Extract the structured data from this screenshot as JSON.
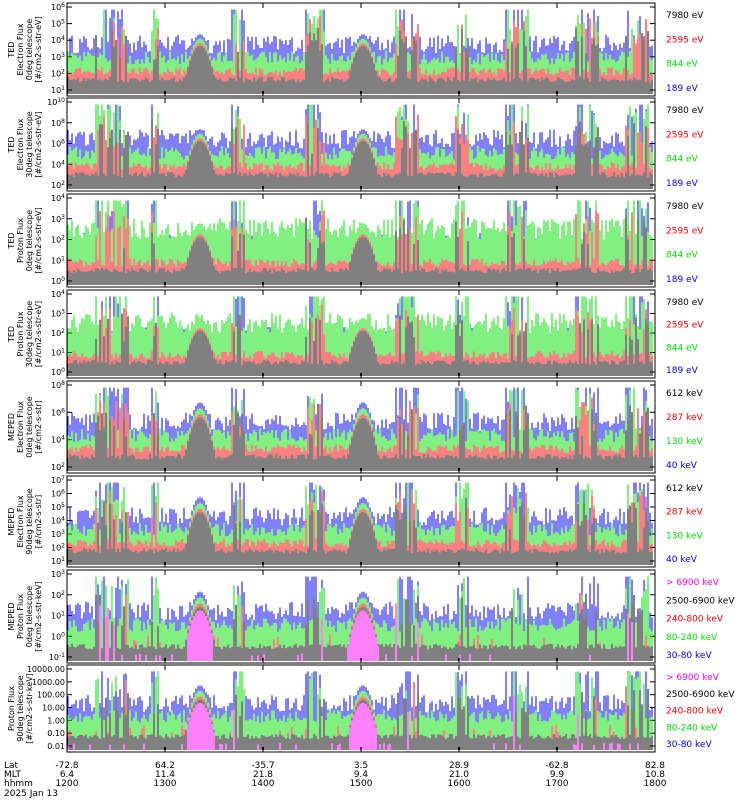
{
  "colors": {
    "blue": "#0000ff",
    "red": "#ff0000",
    "green": "#00e000",
    "black": "#000000",
    "magenta": "#ff00ff"
  },
  "chart_data": [
    {
      "type": "line",
      "ylabel": [
        "TED",
        "Electron Flux",
        "0deg telescope",
        "[#/cm2-s-str-eV]"
      ],
      "yscale": "log",
      "yticks": [
        "10^1",
        "10^2",
        "10^3",
        "10^4",
        "10^5",
        "10^6"
      ],
      "ylim": [
        10,
        1000000
      ],
      "series": [
        {
          "name": "7980 eV",
          "color": "#000000"
        },
        {
          "name": "2595 eV",
          "color": "#ff0000"
        },
        {
          "name": "844 eV",
          "color": "#00e000"
        },
        {
          "name": "189 eV",
          "color": "#0000ff"
        }
      ]
    },
    {
      "type": "line",
      "ylabel": [
        "TED",
        "Electron Flux",
        "30deg telescope",
        "[#/cm2-s-str-eV]"
      ],
      "yscale": "log",
      "yticks": [
        "10^2",
        "10^4",
        "10^6",
        "10^8",
        "10^10"
      ],
      "ylim": [
        100,
        10000000000
      ],
      "series": [
        {
          "name": "7980 eV",
          "color": "#000000"
        },
        {
          "name": "2595 eV",
          "color": "#ff0000"
        },
        {
          "name": "844 eV",
          "color": "#00e000"
        },
        {
          "name": "189 eV",
          "color": "#0000ff"
        }
      ]
    },
    {
      "type": "line",
      "ylabel": [
        "TED",
        "Proton Flux",
        "0deg telescope",
        "[#/cm2-s-str-eV]"
      ],
      "yscale": "log",
      "yticks": [
        "10^0",
        "10^1",
        "10^2",
        "10^3",
        "10^4"
      ],
      "ylim": [
        1,
        100000
      ],
      "series": [
        {
          "name": "7980 eV",
          "color": "#000000"
        },
        {
          "name": "2595 eV",
          "color": "#ff0000"
        },
        {
          "name": "844 eV",
          "color": "#00e000"
        },
        {
          "name": "189 eV",
          "color": "#0000ff"
        }
      ]
    },
    {
      "type": "line",
      "ylabel": [
        "TED",
        "Proton Flux",
        "30deg telescope",
        "[#/cm2-s-str-eV]"
      ],
      "yscale": "log",
      "yticks": [
        "10^0",
        "10^1",
        "10^2",
        "10^3",
        "10^4"
      ],
      "ylim": [
        1,
        100000
      ],
      "series": [
        {
          "name": "7980 eV",
          "color": "#000000"
        },
        {
          "name": "2595 eV",
          "color": "#ff0000"
        },
        {
          "name": "844 eV",
          "color": "#00e000"
        },
        {
          "name": "189 eV",
          "color": "#0000ff"
        }
      ]
    },
    {
      "type": "line",
      "ylabel": [
        "MEPED",
        "Electron Flux",
        "0deg telescope",
        "[#/cm2-s-str]"
      ],
      "yscale": "log",
      "yticks": [
        "10^2",
        "10^4",
        "10^6",
        "10^8"
      ],
      "ylim": [
        10,
        100000000
      ],
      "series": [
        {
          "name": "612 keV",
          "color": "#000000"
        },
        {
          "name": "287 keV",
          "color": "#ff0000"
        },
        {
          "name": "130 keV",
          "color": "#00e000"
        },
        {
          "name": "40 keV",
          "color": "#0000ff"
        }
      ]
    },
    {
      "type": "line",
      "ylabel": [
        "MEPED",
        "Electron Flux",
        "90deg telescope",
        "[#/cm2-s-str]"
      ],
      "yscale": "log",
      "yticks": [
        "10^1",
        "10^2",
        "10^3",
        "10^4",
        "10^5",
        "10^6",
        "10^7"
      ],
      "ylim": [
        10,
        10000000
      ],
      "series": [
        {
          "name": "612 keV",
          "color": "#000000"
        },
        {
          "name": "287 keV",
          "color": "#ff0000"
        },
        {
          "name": "130 keV",
          "color": "#00e000"
        },
        {
          "name": "40 keV",
          "color": "#0000ff"
        }
      ]
    },
    {
      "type": "line",
      "ylabel": [
        "MEPED",
        "Proton Flux",
        "0deg telescope",
        "[#/cm2-s-str-keV]"
      ],
      "yscale": "log",
      "yticks": [
        "10^-1",
        "10^0",
        "10^1",
        "10^2",
        "10^3"
      ],
      "ylim": [
        0.01,
        10000
      ],
      "series": [
        {
          "name": "> 6900 keV",
          "color": "#ff00ff"
        },
        {
          "name": "2500-6900 keV",
          "color": "#000000"
        },
        {
          "name": "240-800 keV",
          "color": "#ff0000"
        },
        {
          "name": "80-240 keV",
          "color": "#00e000"
        },
        {
          "name": "30-80 keV",
          "color": "#0000ff"
        }
      ]
    },
    {
      "type": "line",
      "ylabel": [
        "Proton Flux",
        "90deg telescope",
        "[#/cm2-s-str-keV]"
      ],
      "yscale": "log",
      "yticks": [
        "0.01",
        "0.10",
        "1.00",
        "10.00",
        "100.00",
        "1000.00",
        "10000.00"
      ],
      "ylim": [
        0.01,
        10000
      ],
      "series": [
        {
          "name": "> 6900 keV",
          "color": "#ff00ff"
        },
        {
          "name": "2500-6900 keV",
          "color": "#000000"
        },
        {
          "name": "240-800 keV",
          "color": "#ff0000"
        },
        {
          "name": "80-240 keV",
          "color": "#00e000"
        },
        {
          "name": "30-80 keV",
          "color": "#0000ff"
        }
      ]
    }
  ],
  "xaxis": {
    "row_labels": [
      "Lat",
      "MLT",
      "hhmm"
    ],
    "ticks": [
      {
        "lat": "-72.8",
        "mlt": "6.4",
        "hhmm": "1200"
      },
      {
        "lat": "64.2",
        "mlt": "11.4",
        "hhmm": "1300"
      },
      {
        "lat": "-35.7",
        "mlt": "21.8",
        "hhmm": "1400"
      },
      {
        "lat": "3.5",
        "mlt": "9.4",
        "hhmm": "1500"
      },
      {
        "lat": "28.9",
        "mlt": "21.0",
        "hhmm": "1600"
      },
      {
        "lat": "-62.8",
        "mlt": "9.9",
        "hhmm": "1700"
      },
      {
        "lat": "82.8",
        "mlt": "10.8",
        "hhmm": "1800"
      }
    ],
    "date": "2025 Jan 13"
  }
}
